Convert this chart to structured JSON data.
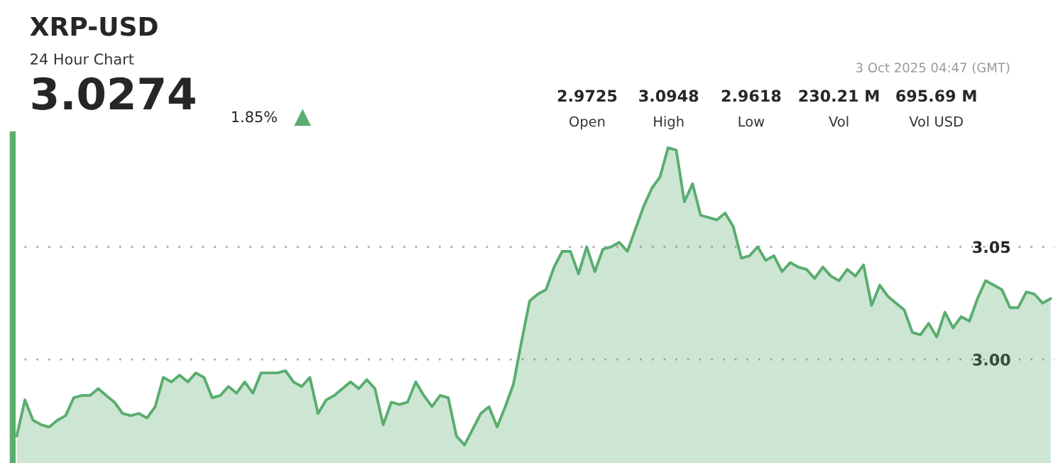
{
  "chart_data": {
    "type": "area",
    "title": "XRP-USD",
    "subtitle": "24 Hour Chart",
    "annotations": [
      "3.0274",
      "1.85%",
      "3 Oct 2025 04:47 (GMT)",
      "2.9725",
      "Open",
      "3.0948",
      "High",
      "2.9618",
      "Low",
      "230.21 M",
      "Vol",
      "695.69 M",
      "Vol USD"
    ],
    "categories": [
      null,
      null,
      null,
      null,
      null,
      null,
      null,
      null,
      null,
      null,
      null,
      null,
      null,
      null,
      null,
      null,
      null,
      null,
      null,
      null,
      null,
      null,
      null,
      null,
      null,
      null,
      null,
      null,
      null,
      null,
      null,
      null,
      null,
      null,
      null,
      null,
      null,
      null,
      null,
      null,
      null,
      null,
      null,
      null,
      null,
      null,
      null,
      null,
      null,
      null,
      null,
      null,
      null,
      null,
      null,
      null,
      null,
      null,
      null,
      null,
      null,
      null,
      null,
      null,
      null,
      null,
      null,
      null,
      null,
      null,
      null,
      null,
      null,
      null,
      null,
      null,
      null,
      null,
      null,
      null,
      null,
      null,
      null,
      null,
      null,
      null,
      null,
      null,
      null,
      null,
      null,
      null,
      null,
      null,
      null,
      null,
      null,
      null,
      null,
      null,
      null,
      null,
      null,
      null,
      null,
      null,
      null,
      null,
      null,
      null,
      null,
      null,
      null,
      null,
      null,
      null,
      null,
      null,
      null,
      null,
      null,
      null,
      null,
      null,
      null,
      null,
      null,
      null
    ],
    "series": [
      {
        "color": "#5aad6f",
        "values": [
          2.966,
          2.982,
          2.973,
          2.971,
          2.97,
          2.973,
          2.975,
          2.983,
          2.984,
          2.984,
          2.987,
          2.984,
          2.981,
          2.976,
          2.975,
          2.976,
          2.974,
          2.979,
          2.992,
          2.99,
          2.993,
          2.99,
          2.994,
          2.992,
          2.983,
          2.984,
          2.988,
          2.985,
          2.99,
          2.985,
          2.994,
          2.994,
          2.994,
          2.995,
          2.99,
          2.988,
          2.992,
          2.976,
          2.982,
          2.984,
          2.987,
          2.99,
          2.987,
          2.991,
          2.987,
          2.971,
          2.981,
          2.98,
          2.981,
          2.99,
          2.984,
          2.979,
          2.984,
          2.983,
          2.966,
          2.962,
          2.969,
          2.976,
          2.979,
          2.97,
          2.979,
          2.989,
          3.008,
          3.026,
          3.029,
          3.031,
          3.041,
          3.048,
          3.048,
          3.038,
          3.05,
          3.039,
          3.049,
          3.05,
          3.052,
          3.048,
          3.058,
          3.068,
          3.076,
          3.081,
          3.094,
          3.093,
          3.07,
          3.078,
          3.064,
          3.063,
          3.062,
          3.065,
          3.059,
          3.045,
          3.046,
          3.05,
          3.044,
          3.046,
          3.039,
          3.043,
          3.041,
          3.04,
          3.036,
          3.041,
          3.037,
          3.035,
          3.04,
          3.037,
          3.042,
          3.024,
          3.033,
          3.028,
          3.025,
          3.022,
          3.012,
          3.011,
          3.016,
          3.01,
          3.021,
          3.014,
          3.019,
          3.017,
          3.027,
          3.035,
          3.033,
          3.031,
          3.023,
          3.023,
          3.03,
          3.029,
          3.025,
          3.027
        ]
      }
    ],
    "ylim": [
      2.954,
      3.1
    ],
    "yticks": [
      {
        "value": 3.0,
        "label": "3.00"
      },
      {
        "value": 3.05,
        "label": "3.05"
      }
    ],
    "grid": "y",
    "tick_labels": "y",
    "legend": false
  }
}
